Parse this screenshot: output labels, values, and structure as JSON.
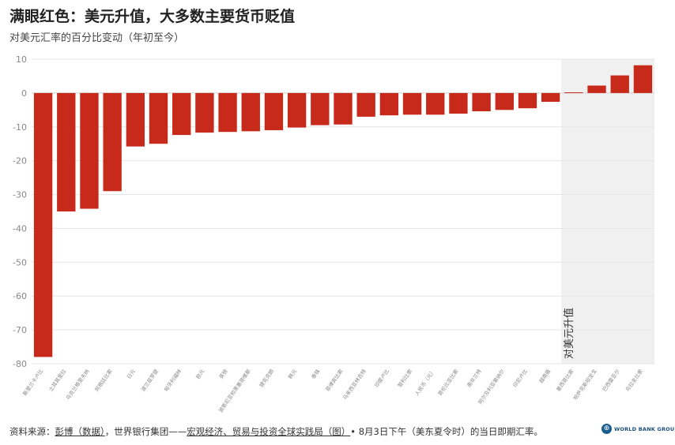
{
  "header": {
    "title": "满眼红色：美元升值，大多数主要货币贬值",
    "subtitle": "对美元汇率的百分比变动（年初至今）"
  },
  "chart_data": {
    "type": "bar",
    "title": "满眼红色：美元升值，大多数主要货币贬值",
    "subtitle": "对美元汇率的百分比变动（年初至今）",
    "categories": [
      "斯里兰卡卢比",
      "土耳其里拉",
      "乌克兰格里夫纳",
      "阿根廷比索",
      "日元",
      "波兰兹罗提",
      "匈牙利福林",
      "欧元",
      "英镑",
      "波斯尼亚和黑塞哥维那",
      "捷克克朗",
      "韩元",
      "泰铢",
      "菲律宾比索",
      "马来西亚林吉特",
      "印度卢比",
      "智利比索",
      "人民币（元）",
      "哥伦比亚比索",
      "南非兰特",
      "阿尔及利亚第纳尔",
      "印尼卢比",
      "越南盾",
      "墨西哥比索",
      "哈萨克斯坦坚戈",
      "巴西雷亚尔",
      "乌拉圭比索"
    ],
    "values": [
      -78,
      -35,
      -34.2,
      -29,
      -15.8,
      -15,
      -12.4,
      -11.7,
      -11.5,
      -11.3,
      -11,
      -10.2,
      -9.5,
      -9.3,
      -7,
      -6.6,
      -6.4,
      -6.4,
      -6.1,
      -5.4,
      -5,
      -4.5,
      -2.6,
      0.2,
      2.2,
      5.2,
      8.2
    ],
    "ylim": [
      -80,
      10
    ],
    "yticks": [
      10,
      0,
      -10,
      -20,
      -30,
      -40,
      -50,
      -60,
      -70,
      -80
    ],
    "grid": true,
    "highlight": {
      "label": "对美元升值",
      "start_index": 23
    },
    "colors": {
      "bar": "#c72a1a",
      "highlight_bg": "#f0f0f0",
      "grid": "#e6e6e6",
      "axis_text": "#888888"
    }
  },
  "footer": {
    "source_prefix": "资料来源：",
    "source_link1": "彭博（数据）",
    "source_mid": "，世界银行集团——",
    "source_link2": "宏观经济、贸易与投资全球实践局（图）",
    "source_suffix": "• 8月3日下午（美东夏令时）的当日即期汇率。",
    "logo_text": "WORLD BANK GROUP"
  }
}
